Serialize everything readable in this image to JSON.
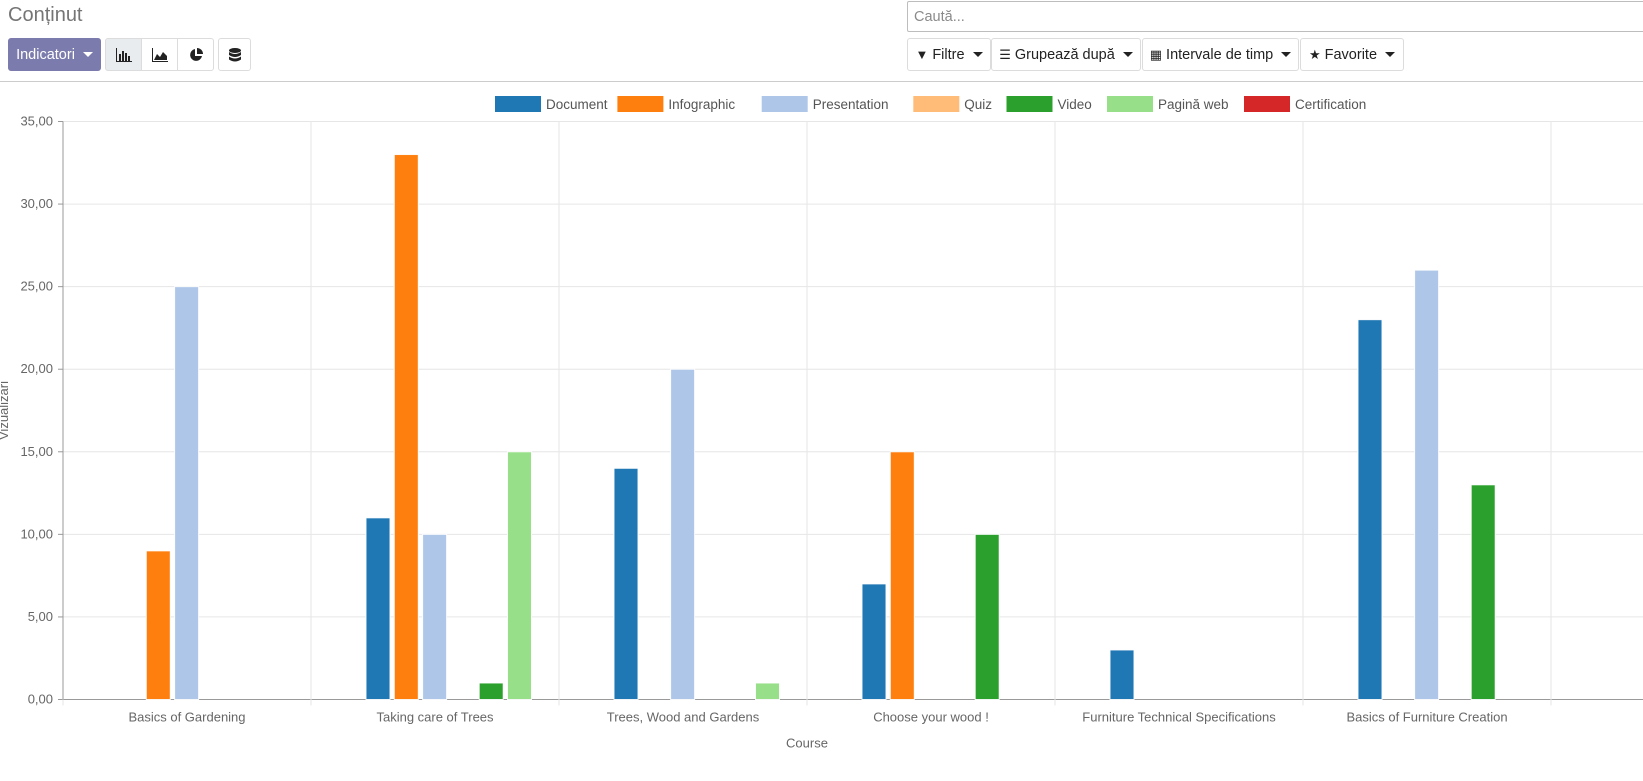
{
  "header": {
    "title": "Conținut",
    "measures_label": "Indicatori",
    "search_placeholder": "Caută...",
    "filters_label": "Filtre",
    "groupby_label": "Grupează după",
    "timeranges_label": "Intervale de timp",
    "favorites_label": "Favorite"
  },
  "chart_data": {
    "type": "bar",
    "ylabel": "Vizualizări",
    "xlabel": "Course",
    "ylim": [
      0,
      35
    ],
    "yticks": [
      "0,00",
      "5,00",
      "10,00",
      "15,00",
      "20,00",
      "25,00",
      "30,00",
      "35,00"
    ],
    "legend_position": "top",
    "grid": true,
    "categories": [
      "Basics of Gardening",
      "Taking care of Trees",
      "Trees, Wood and Gardens",
      "Choose your wood !",
      "Furniture Technical Specifications",
      "Basics of Furniture Creation"
    ],
    "series": [
      {
        "name": "Document",
        "color": "#1f77b4",
        "values": [
          0,
          11,
          14,
          7,
          3,
          23
        ]
      },
      {
        "name": "Infographic",
        "color": "#ff7f0e",
        "values": [
          9,
          33,
          0,
          15,
          0,
          0
        ]
      },
      {
        "name": "Presentation",
        "color": "#aec7e8",
        "values": [
          25,
          10,
          20,
          0,
          0,
          26
        ]
      },
      {
        "name": "Quiz",
        "color": "#ffbb78",
        "values": [
          0,
          0,
          0,
          0,
          0,
          0
        ]
      },
      {
        "name": "Video",
        "color": "#2ca02c",
        "values": [
          0,
          1,
          0,
          10,
          0,
          13
        ]
      },
      {
        "name": "Pagină web",
        "color": "#98df8a",
        "values": [
          0,
          15,
          1,
          0,
          0,
          0
        ]
      },
      {
        "name": "Certification",
        "color": "#d62728",
        "values": [
          0,
          0,
          0,
          0,
          0,
          0
        ]
      }
    ]
  }
}
